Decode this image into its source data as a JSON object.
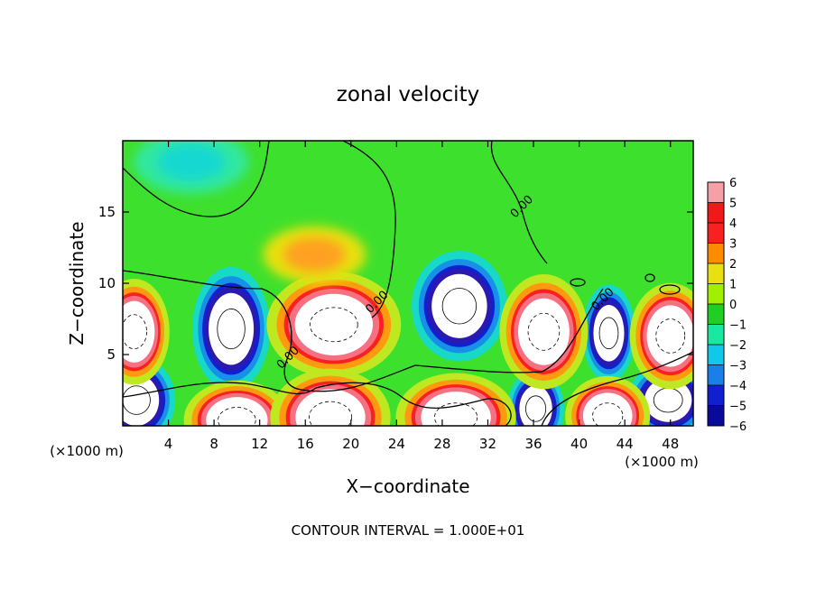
{
  "chart_data": {
    "type": "heatmap",
    "title": "zonal velocity",
    "xlabel": "X−coordinate",
    "ylabel": "Z−coordinate",
    "x_unit_left": "(×1000 m)",
    "x_unit_right": "(×1000 m)",
    "footer": "CONTOUR INTERVAL = 1.000E+01",
    "xlim": [
      0,
      50
    ],
    "ylim": [
      0,
      20
    ],
    "x_ticks": [
      4,
      8,
      12,
      16,
      20,
      24,
      28,
      32,
      36,
      40,
      44,
      48
    ],
    "y_ticks": [
      5,
      10,
      15
    ],
    "zlim": [
      -6,
      6
    ],
    "colorbar_ticks": [
      6,
      5,
      4,
      3,
      2,
      1,
      0,
      -1,
      -2,
      -3,
      -4,
      -5,
      -6
    ],
    "colorbar_colors": [
      "#f5a0a6",
      "#f01818",
      "#f82020",
      "#ff8c00",
      "#e8e010",
      "#a0f000",
      "#20d020",
      "#18e8a0",
      "#10c8e8",
      "#1880e8",
      "#1020d0",
      "#0a0a9a",
      "#7a1aa8"
    ],
    "contour_labels": [
      {
        "text": "0.00",
        "x": 14.7,
        "y": 4.6
      },
      {
        "text": "0.00",
        "x": 22.5,
        "y": 8.5
      },
      {
        "text": "0.00",
        "x": 35.2,
        "y": 15.2
      },
      {
        "text": "0.00",
        "x": 42.3,
        "y": 8.7
      }
    ],
    "features": [
      {
        "sign": "neg",
        "x": 9.5,
        "y": 6.8,
        "rx": 2.2,
        "ry": 2.8
      },
      {
        "sign": "neg",
        "x": 29.5,
        "y": 8.4,
        "rx": 2.7,
        "ry": 2.5
      },
      {
        "sign": "neg",
        "x": 42.6,
        "y": 6.5,
        "rx": 1.5,
        "ry": 2.2
      },
      {
        "sign": "neg",
        "x": 1.2,
        "y": 1.8,
        "rx": 2.2,
        "ry": 2.0
      },
      {
        "sign": "neg",
        "x": 36.2,
        "y": 1.2,
        "rx": 1.6,
        "ry": 1.8
      },
      {
        "sign": "neg",
        "x": 47.8,
        "y": 1.8,
        "rx": 2.3,
        "ry": 1.7
      },
      {
        "sign": "pos",
        "x": 18.5,
        "y": 7.1,
        "rx": 3.8,
        "ry": 2.4
      },
      {
        "sign": "pos",
        "x": 36.9,
        "y": 6.6,
        "rx": 2.5,
        "ry": 2.6
      },
      {
        "sign": "pos",
        "x": 1.0,
        "y": 6.6,
        "rx": 2.0,
        "ry": 2.4
      },
      {
        "sign": "pos",
        "x": 48.0,
        "y": 6.3,
        "rx": 2.3,
        "ry": 2.4
      },
      {
        "sign": "pos",
        "x": 10.0,
        "y": 0.4,
        "rx": 3.0,
        "ry": 1.8
      },
      {
        "sign": "pos",
        "x": 18.2,
        "y": 0.6,
        "rx": 3.4,
        "ry": 2.2
      },
      {
        "sign": "pos",
        "x": 29.2,
        "y": 0.6,
        "rx": 3.4,
        "ry": 2.0
      },
      {
        "sign": "pos",
        "x": 42.5,
        "y": 0.7,
        "rx": 2.4,
        "ry": 1.8
      },
      {
        "sign": "warm",
        "x": 16.8,
        "y": 12.0,
        "rx": 4.5,
        "ry": 2.0
      },
      {
        "sign": "cool",
        "x": 6.0,
        "y": 18.5,
        "rx": 5.0,
        "ry": 2.2
      }
    ]
  }
}
